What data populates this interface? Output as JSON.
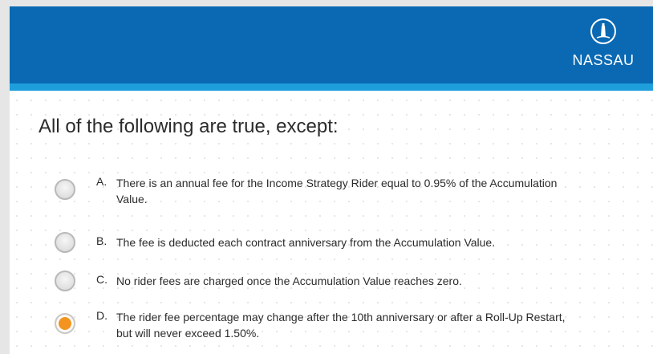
{
  "header": {
    "logo_text": "NASSAU"
  },
  "question": "All of the following are true, except:",
  "options": [
    {
      "letter": "A.",
      "text": "There is an annual fee for the Income Strategy Rider equal to 0.95% of the Accumulation Value."
    },
    {
      "letter": "B.",
      "text": "The fee is deducted each contract anniversary from the Accumulation Value."
    },
    {
      "letter": "C.",
      "text": "No rider fees are charged once the Accumulation Value reaches zero."
    },
    {
      "letter": "D.",
      "text": "The rider fee percentage may change after the 10th anniversary or after a Roll-Up Restart, but will never exceed 1.50%."
    }
  ],
  "selected": "D."
}
